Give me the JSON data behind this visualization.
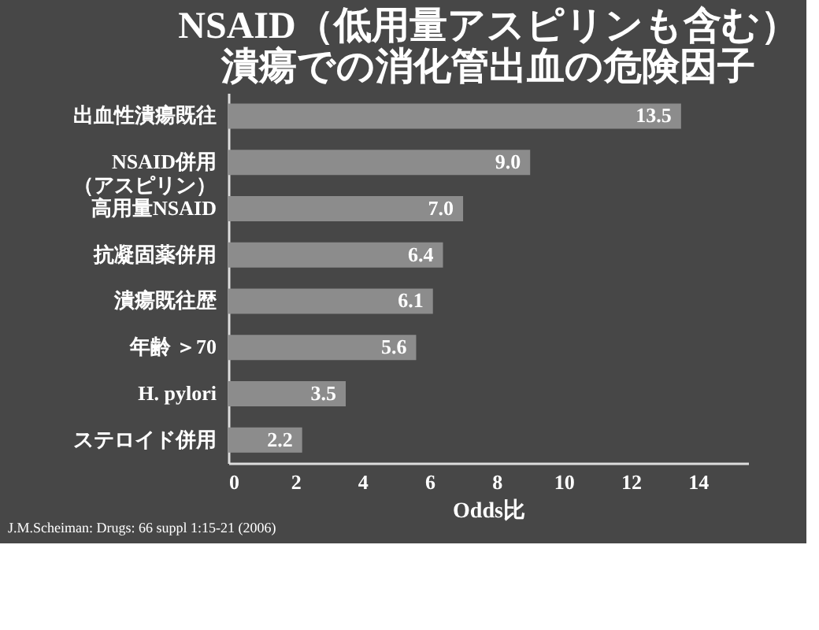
{
  "chart_data": {
    "type": "bar",
    "orientation": "horizontal",
    "title": [
      "NSAID（低用量アスピリンも含む）",
      "潰瘍での消化管出血の危険因子"
    ],
    "categories": [
      "出血性潰瘍既往",
      "NSAID併用（アスピリン）",
      "高用量NSAID",
      "抗凝固薬併用",
      "潰瘍既往歴",
      "年齢 ＞70",
      "H. pylori",
      "ステロイド併用"
    ],
    "values": [
      13.5,
      9.0,
      7.0,
      6.4,
      6.1,
      5.6,
      3.5,
      2.2
    ],
    "value_labels": [
      "13.5",
      "9.0",
      "7.0",
      "6.4",
      "6.1",
      "5.6",
      "3.5",
      "2.2"
    ],
    "color": "#8c8c8c",
    "xlim": [
      0,
      15.5
    ],
    "xticks": [
      0,
      2,
      4,
      6,
      8,
      10,
      12,
      14
    ],
    "xlabel": "Odds比",
    "grid": false,
    "annotations": [
      "J.M.Scheiman: Drugs: 66 suppl 1:15-21 (2006)"
    ]
  }
}
